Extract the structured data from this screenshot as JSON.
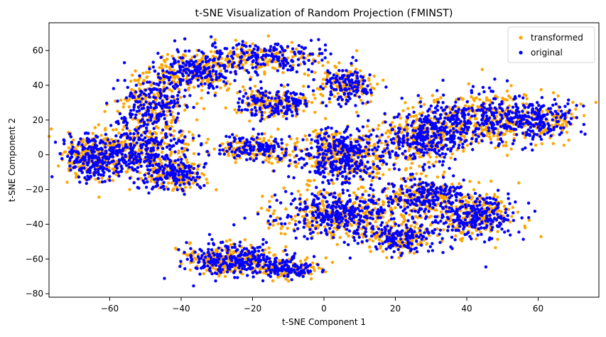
{
  "chart_data": {
    "type": "scatter",
    "title": "t-SNE Visualization of Random Projection (FMINST)",
    "xlabel": "t-SNE Component 1",
    "ylabel": "t-SNE Component 2",
    "xlim": [
      -77,
      77
    ],
    "ylim": [
      -82,
      76
    ],
    "xticks": [
      -60,
      -40,
      -20,
      0,
      20,
      40,
      60
    ],
    "yticks": [
      -80,
      -60,
      -40,
      -20,
      0,
      20,
      40,
      60
    ],
    "grid": false,
    "legend_position": "top-right",
    "series": [
      {
        "name": "transformed",
        "color": "#ffa500",
        "clusters": [
          {
            "cx": -64,
            "cy": -2,
            "rx": 8,
            "ry": 12,
            "n": 220
          },
          {
            "cx": -50,
            "cy": 2,
            "rx": 12,
            "ry": 16,
            "n": 260
          },
          {
            "cx": -42,
            "cy": -12,
            "rx": 8,
            "ry": 8,
            "n": 120
          },
          {
            "cx": -48,
            "cy": 30,
            "rx": 8,
            "ry": 14,
            "n": 170
          },
          {
            "cx": -36,
            "cy": 48,
            "rx": 10,
            "ry": 10,
            "n": 160
          },
          {
            "cx": -18,
            "cy": 56,
            "rx": 16,
            "ry": 8,
            "n": 180
          },
          {
            "cx": -14,
            "cy": 30,
            "rx": 10,
            "ry": 8,
            "n": 140
          },
          {
            "cx": -20,
            "cy": 4,
            "rx": 10,
            "ry": 7,
            "n": 110
          },
          {
            "cx": 7,
            "cy": 40,
            "rx": 7,
            "ry": 10,
            "n": 120
          },
          {
            "cx": 5,
            "cy": 0,
            "rx": 12,
            "ry": 15,
            "n": 320
          },
          {
            "cx": 4,
            "cy": -34,
            "rx": 16,
            "ry": 12,
            "n": 300
          },
          {
            "cx": 22,
            "cy": -48,
            "rx": 10,
            "ry": 8,
            "n": 140
          },
          {
            "cx": 27,
            "cy": 10,
            "rx": 10,
            "ry": 14,
            "n": 220
          },
          {
            "cx": 42,
            "cy": 20,
            "rx": 14,
            "ry": 14,
            "n": 260
          },
          {
            "cx": 60,
            "cy": 20,
            "rx": 10,
            "ry": 10,
            "n": 170
          },
          {
            "cx": 28,
            "cy": -24,
            "rx": 10,
            "ry": 10,
            "n": 170
          },
          {
            "cx": 42,
            "cy": -35,
            "rx": 10,
            "ry": 12,
            "n": 220
          },
          {
            "cx": -26,
            "cy": -60,
            "rx": 12,
            "ry": 8,
            "n": 240
          },
          {
            "cx": -10,
            "cy": -66,
            "rx": 8,
            "ry": 5,
            "n": 100
          }
        ]
      },
      {
        "name": "original",
        "color": "#0000ff",
        "clusters": [
          {
            "cx": -64,
            "cy": -2,
            "rx": 8,
            "ry": 12,
            "n": 240
          },
          {
            "cx": -50,
            "cy": 2,
            "rx": 12,
            "ry": 16,
            "n": 280
          },
          {
            "cx": -42,
            "cy": -12,
            "rx": 8,
            "ry": 8,
            "n": 120
          },
          {
            "cx": -48,
            "cy": 30,
            "rx": 8,
            "ry": 14,
            "n": 190
          },
          {
            "cx": -36,
            "cy": 48,
            "rx": 10,
            "ry": 10,
            "n": 180
          },
          {
            "cx": -18,
            "cy": 56,
            "rx": 16,
            "ry": 8,
            "n": 200
          },
          {
            "cx": -14,
            "cy": 30,
            "rx": 10,
            "ry": 8,
            "n": 160
          },
          {
            "cx": -20,
            "cy": 4,
            "rx": 10,
            "ry": 7,
            "n": 130
          },
          {
            "cx": 7,
            "cy": 40,
            "rx": 7,
            "ry": 10,
            "n": 130
          },
          {
            "cx": 5,
            "cy": 0,
            "rx": 12,
            "ry": 15,
            "n": 340
          },
          {
            "cx": 4,
            "cy": -34,
            "rx": 16,
            "ry": 12,
            "n": 320
          },
          {
            "cx": 22,
            "cy": -48,
            "rx": 10,
            "ry": 8,
            "n": 150
          },
          {
            "cx": 27,
            "cy": 10,
            "rx": 10,
            "ry": 14,
            "n": 240
          },
          {
            "cx": 42,
            "cy": 20,
            "rx": 14,
            "ry": 14,
            "n": 280
          },
          {
            "cx": 60,
            "cy": 20,
            "rx": 10,
            "ry": 10,
            "n": 180
          },
          {
            "cx": 28,
            "cy": -24,
            "rx": 10,
            "ry": 10,
            "n": 190
          },
          {
            "cx": 42,
            "cy": -35,
            "rx": 10,
            "ry": 12,
            "n": 240
          },
          {
            "cx": -26,
            "cy": -60,
            "rx": 12,
            "ry": 8,
            "n": 260
          },
          {
            "cx": -10,
            "cy": -66,
            "rx": 8,
            "ry": 5,
            "n": 110
          }
        ]
      }
    ]
  }
}
